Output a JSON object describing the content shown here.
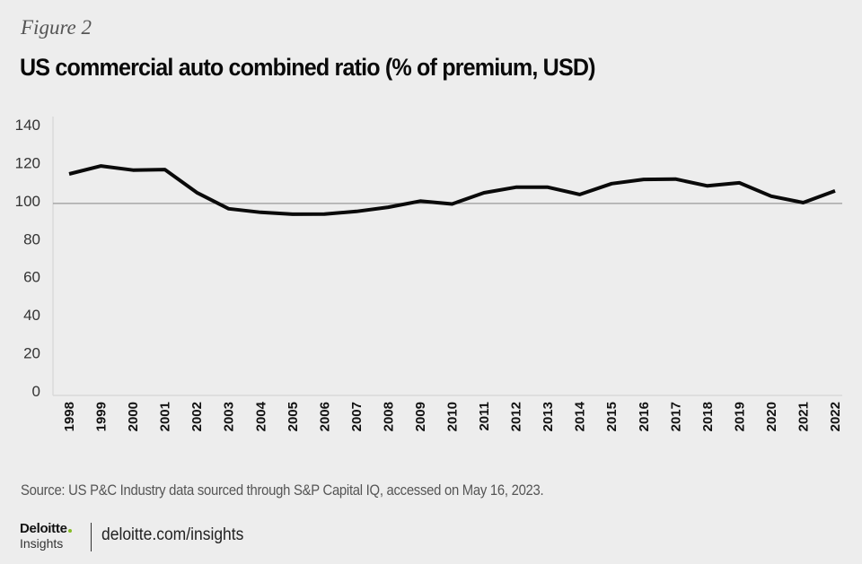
{
  "figure_label": "Figure 2",
  "chart_data": {
    "type": "line",
    "title": "US commercial auto combined ratio (% of premium, USD)",
    "xlabel": "",
    "ylabel": "",
    "x": [
      "1998",
      "1999",
      "2000",
      "2001",
      "2002",
      "2003",
      "2004",
      "2005",
      "2006",
      "2007",
      "2008",
      "2009",
      "2010",
      "2011",
      "2012",
      "2013",
      "2014",
      "2015",
      "2016",
      "2017",
      "2018",
      "2019",
      "2020",
      "2021",
      "2022"
    ],
    "series": [
      {
        "name": "Combined ratio",
        "values": [
          115.5,
          119.7,
          117.5,
          117.8,
          105.7,
          97.2,
          95.3,
          94.3,
          94.4,
          95.8,
          98.0,
          101.2,
          99.7,
          105.6,
          108.5,
          108.5,
          104.7,
          110.4,
          112.6,
          112.8,
          109.2,
          110.8,
          103.8,
          100.4,
          106.6
        ]
      }
    ],
    "yticks": [
      "0",
      "20",
      "40",
      "60",
      "80",
      "100",
      "120",
      "140"
    ],
    "ylim": [
      0,
      140
    ],
    "reference_line": 100,
    "grid": false,
    "legend": "none",
    "line_color": "#0a0a0a"
  },
  "footer": {
    "source": "Source: US P&C Industry data sourced through S&P Capital IQ, accessed on May 16, 2023.",
    "logo_brand": "Deloitte",
    "logo_sub": "Insights",
    "logo_dot_color": "#86bc25",
    "site": "deloitte.com/insights"
  }
}
